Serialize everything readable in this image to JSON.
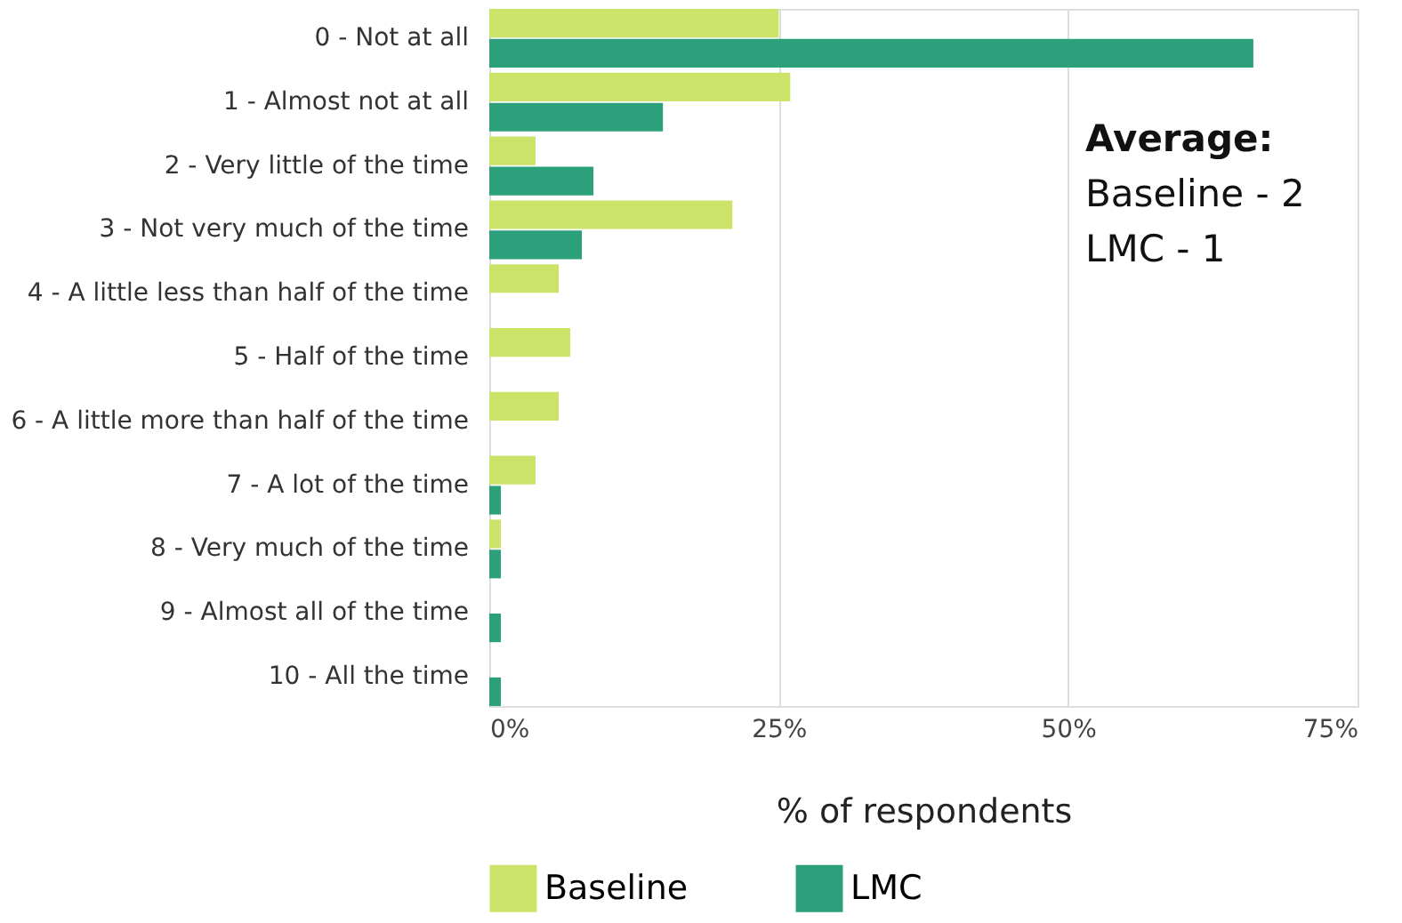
{
  "chart_data": {
    "type": "bar",
    "orientation": "horizontal",
    "categories": [
      "0 - Not at all",
      "1 - Almost not at all",
      "2 - Very little of the time",
      "3 - Not very much of the time",
      "4 - A little less than half of the time",
      "5 - Half of the time",
      "6 - A little more than half of the time",
      "7 - A lot of the time",
      "8 - Very much of the time",
      "9 - Almost all of the time",
      "10 - All the time"
    ],
    "series": [
      {
        "name": "Baseline",
        "color": "#cce36a",
        "values": [
          25,
          26,
          4,
          21,
          6,
          7,
          6,
          4,
          1,
          0,
          0
        ]
      },
      {
        "name": "LMC",
        "color": "#2ba07a",
        "values": [
          66,
          15,
          9,
          8,
          0,
          0,
          0,
          1,
          1,
          1,
          1
        ]
      }
    ],
    "xlim": [
      0,
      75
    ],
    "xticks": [
      {
        "value": 0,
        "label": "0%"
      },
      {
        "value": 25,
        "label": "25%"
      },
      {
        "value": 50,
        "label": "50%"
      },
      {
        "value": 75,
        "label": "75%"
      }
    ],
    "xlabel": "% of respondents",
    "annotations": [
      "Average:",
      "Baseline - 2",
      "LMC - 1"
    ],
    "grid": "x",
    "legend": "bottom"
  }
}
